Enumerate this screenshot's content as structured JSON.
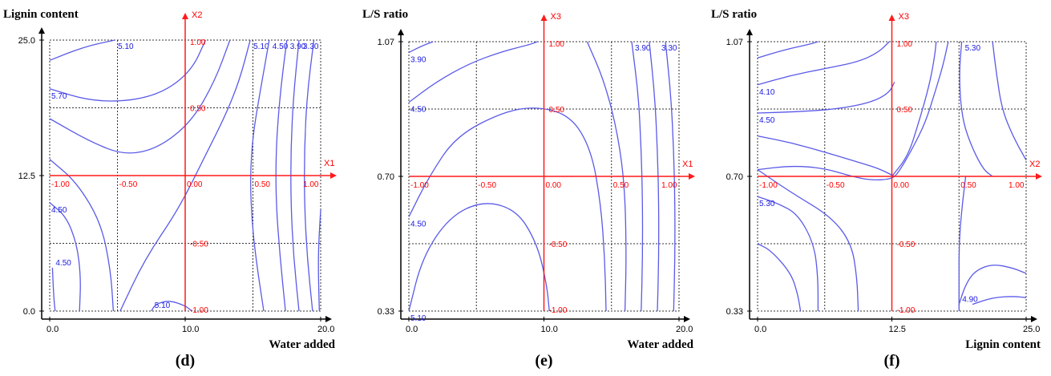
{
  "chart_data": [
    {
      "type": "contour",
      "panel_label": "(d)",
      "ylabel": "Lignin content",
      "xlabel": "Water added",
      "x_ticks": [
        "0.0",
        "10.0",
        "20.0"
      ],
      "y_ticks": [
        "0.0",
        "12.5",
        "25.0"
      ],
      "xlim": [
        0,
        20
      ],
      "ylim": [
        0,
        25
      ],
      "coded_axes": {
        "x_name": "X1",
        "y_name": "X2",
        "x_ticks": [
          "-1.00",
          "-0.50",
          "0.00",
          "0.50",
          "1.00"
        ],
        "y_ticks": [
          "1.00",
          "0.50",
          "-0.50",
          "-1.00"
        ]
      },
      "contours": [
        {
          "level": "4.50",
          "points": [
            [
              -0.98,
              -0.68
            ],
            [
              -0.97,
              -0.9
            ],
            [
              -0.96,
              -1.0
            ]
          ]
        },
        {
          "level": "4.50",
          "points": [
            [
              -1.0,
              -0.2
            ],
            [
              -0.88,
              -0.3
            ],
            [
              -0.8,
              -0.5
            ],
            [
              -0.77,
              -0.75
            ],
            [
              -0.78,
              -1.0
            ]
          ]
        },
        {
          "level": "",
          "points": [
            [
              -1.0,
              0.12
            ],
            [
              -0.8,
              -0.05
            ],
            [
              -0.62,
              -0.35
            ],
            [
              -0.55,
              -0.7
            ],
            [
              -0.53,
              -1.0
            ]
          ]
        },
        {
          "level": "5.10",
          "points": [
            [
              -0.52,
              1.0
            ],
            [
              -0.75,
              0.95
            ],
            [
              -1.0,
              0.85
            ]
          ]
        },
        {
          "level": "5.70",
          "points": [
            [
              -1.0,
              0.64
            ],
            [
              -0.7,
              0.55
            ],
            [
              -0.4,
              0.55
            ],
            [
              -0.15,
              0.62
            ],
            [
              0.05,
              0.78
            ],
            [
              0.15,
              1.0
            ]
          ]
        },
        {
          "level": "",
          "points": [
            [
              -1.0,
              0.42
            ],
            [
              -0.7,
              0.25
            ],
            [
              -0.45,
              0.15
            ],
            [
              -0.2,
              0.2
            ],
            [
              0.05,
              0.4
            ],
            [
              0.22,
              0.7
            ],
            [
              0.33,
              1.0
            ]
          ]
        },
        {
          "level": "5.10",
          "points": [
            [
              -0.25,
              -1.0
            ],
            [
              -0.22,
              -0.95
            ],
            [
              -0.12,
              -0.92
            ],
            [
              0.0,
              -0.96
            ],
            [
              0.05,
              -1.0
            ]
          ]
        },
        {
          "level": "5.10",
          "points": [
            [
              0.48,
              1.0
            ],
            [
              0.4,
              0.7
            ],
            [
              0.3,
              0.45
            ],
            [
              0.15,
              0.15
            ],
            [
              -0.05,
              -0.25
            ],
            [
              -0.3,
              -0.62
            ],
            [
              -0.48,
              -1.0
            ]
          ]
        },
        {
          "level": "4.50",
          "points": [
            [
              0.62,
              1.0
            ],
            [
              0.55,
              0.6
            ],
            [
              0.5,
              0.3
            ],
            [
              0.48,
              0.0
            ],
            [
              0.49,
              -0.3
            ],
            [
              0.52,
              -0.6
            ],
            [
              0.58,
              -1.0
            ]
          ]
        },
        {
          "level": "3.90",
          "points": [
            [
              0.75,
              1.0
            ],
            [
              0.7,
              0.6
            ],
            [
              0.67,
              0.2
            ],
            [
              0.67,
              -0.2
            ],
            [
              0.7,
              -0.6
            ],
            [
              0.74,
              -1.0
            ]
          ]
        },
        {
          "level": "",
          "points": [
            [
              0.84,
              1.0
            ],
            [
              0.8,
              0.6
            ],
            [
              0.78,
              0.2
            ],
            [
              0.78,
              -0.2
            ],
            [
              0.8,
              -0.6
            ],
            [
              0.84,
              -1.0
            ]
          ]
        },
        {
          "level": "3.30",
          "points": [
            [
              0.95,
              1.0
            ],
            [
              0.9,
              0.6
            ],
            [
              0.88,
              0.2
            ],
            [
              0.88,
              -0.2
            ],
            [
              0.9,
              -0.6
            ],
            [
              0.94,
              -1.0
            ]
          ]
        },
        {
          "level": "",
          "points": [
            [
              1.0,
              -0.25
            ],
            [
              0.98,
              -0.6
            ],
            [
              0.99,
              -1.0
            ]
          ]
        }
      ]
    },
    {
      "type": "contour",
      "panel_label": "(e)",
      "ylabel": "L/S ratio",
      "xlabel": "Water added",
      "x_ticks": [
        "0.0",
        "10.0",
        "20.0"
      ],
      "y_ticks": [
        "0.33",
        "0.70",
        "1.07"
      ],
      "xlim": [
        0,
        20
      ],
      "ylim": [
        0.33,
        1.07
      ],
      "coded_axes": {
        "x_name": "X1",
        "y_name": "X3",
        "x_ticks": [
          "-1.00",
          "-0.50",
          "0.00",
          "0.50",
          "1.00"
        ],
        "y_ticks": [
          "1.00",
          "0.50",
          "-0.50",
          "-1.00"
        ]
      },
      "contours": [
        {
          "level": "3.90",
          "points": [
            [
              -1.0,
              0.92
            ],
            [
              -0.9,
              0.97
            ],
            [
              -0.82,
              1.0
            ]
          ]
        },
        {
          "level": "4.50",
          "points": [
            [
              -1.0,
              0.55
            ],
            [
              -0.8,
              0.7
            ],
            [
              -0.55,
              0.84
            ],
            [
              -0.3,
              0.93
            ],
            [
              -0.1,
              0.98
            ],
            [
              -0.05,
              1.0
            ]
          ]
        },
        {
          "level": "4.50",
          "points": [
            [
              -1.0,
              -0.3
            ],
            [
              -0.85,
              0.0
            ],
            [
              -0.65,
              0.3
            ],
            [
              -0.3,
              0.48
            ],
            [
              -0.05,
              0.52
            ],
            [
              0.2,
              0.45
            ],
            [
              0.35,
              0.2
            ],
            [
              0.42,
              -0.2
            ],
            [
              0.45,
              -0.6
            ],
            [
              0.46,
              -1.0
            ]
          ]
        },
        {
          "level": "5.10",
          "points": [
            [
              -1.0,
              -1.0
            ],
            [
              -0.9,
              -0.6
            ],
            [
              -0.7,
              -0.3
            ],
            [
              -0.45,
              -0.18
            ],
            [
              -0.2,
              -0.25
            ],
            [
              -0.05,
              -0.5
            ],
            [
              0.02,
              -0.8
            ],
            [
              0.04,
              -1.0
            ]
          ]
        },
        {
          "level": "",
          "points": [
            [
              0.32,
              1.0
            ],
            [
              0.45,
              0.7
            ],
            [
              0.55,
              0.3
            ],
            [
              0.6,
              -0.1
            ],
            [
              0.61,
              -0.6
            ],
            [
              0.6,
              -1.0
            ]
          ]
        },
        {
          "level": "3.90",
          "points": [
            [
              0.65,
              1.0
            ],
            [
              0.7,
              0.6
            ],
            [
              0.72,
              0.2
            ],
            [
              0.73,
              -0.2
            ],
            [
              0.73,
              -0.6
            ],
            [
              0.72,
              -1.0
            ]
          ]
        },
        {
          "level": "",
          "points": [
            [
              0.78,
              1.0
            ],
            [
              0.82,
              0.6
            ],
            [
              0.84,
              0.2
            ],
            [
              0.85,
              -0.2
            ],
            [
              0.85,
              -0.6
            ],
            [
              0.84,
              -1.0
            ]
          ]
        },
        {
          "level": "3.30",
          "points": [
            [
              0.9,
              1.0
            ],
            [
              0.94,
              0.6
            ],
            [
              0.96,
              0.2
            ],
            [
              0.97,
              -0.2
            ],
            [
              0.97,
              -0.6
            ],
            [
              0.96,
              -1.0
            ]
          ]
        }
      ]
    },
    {
      "type": "contour",
      "panel_label": "(f)",
      "ylabel": "L/S ratio",
      "xlabel": "Lignin content",
      "x_ticks": [
        "0.0",
        "12.5",
        "25.0"
      ],
      "y_ticks": [
        "0.33",
        "0.70",
        "1.07"
      ],
      "xlim": [
        0,
        25
      ],
      "ylim": [
        0.33,
        1.07
      ],
      "coded_axes": {
        "x_name": "X2",
        "y_name": "X3",
        "x_ticks": [
          "-1.00",
          "-0.50",
          "0.00",
          "0.50",
          "1.00"
        ],
        "y_ticks": [
          "1.00",
          "0.50",
          "-0.50",
          "-1.00"
        ]
      },
      "contours": [
        {
          "level": "",
          "points": [
            [
              -1.0,
              0.88
            ],
            [
              -0.8,
              0.94
            ],
            [
              -0.62,
              0.98
            ],
            [
              -0.55,
              1.0
            ]
          ]
        },
        {
          "level": "4.10",
          "points": [
            [
              -1.0,
              0.68
            ],
            [
              -0.75,
              0.75
            ],
            [
              -0.5,
              0.8
            ],
            [
              -0.25,
              0.85
            ],
            [
              -0.1,
              0.92
            ],
            [
              -0.02,
              1.0
            ]
          ]
        },
        {
          "level": "4.50",
          "points": [
            [
              -1.0,
              0.47
            ],
            [
              -0.7,
              0.48
            ],
            [
              -0.4,
              0.5
            ],
            [
              -0.15,
              0.55
            ],
            [
              -0.02,
              0.62
            ],
            [
              0.02,
              0.7
            ]
          ]
        },
        {
          "level": "",
          "points": [
            [
              -1.0,
              0.3
            ],
            [
              -0.75,
              0.25
            ],
            [
              -0.5,
              0.18
            ],
            [
              -0.3,
              0.12
            ],
            [
              -0.1,
              0.06
            ],
            [
              0.02,
              0.0
            ]
          ]
        },
        {
          "level": "",
          "points": [
            [
              -1.0,
              0.05
            ],
            [
              -0.75,
              0.08
            ],
            [
              -0.5,
              0.06
            ],
            [
              -0.3,
              0.0
            ],
            [
              -0.15,
              -0.03
            ],
            [
              0.0,
              -0.02
            ],
            [
              0.05,
              0.03
            ],
            [
              0.15,
              0.2
            ],
            [
              0.25,
              0.4
            ],
            [
              0.32,
              0.62
            ],
            [
              0.38,
              0.82
            ],
            [
              0.42,
              1.0
            ]
          ]
        },
        {
          "level": "",
          "points": [
            [
              0.0,
              0.0
            ],
            [
              0.12,
              0.15
            ],
            [
              0.2,
              0.4
            ],
            [
              0.28,
              0.68
            ],
            [
              0.32,
              0.9
            ],
            [
              0.33,
              1.0
            ]
          ]
        },
        {
          "level": "5.30",
          "points": [
            [
              0.52,
              1.0
            ],
            [
              0.5,
              0.75
            ],
            [
              0.52,
              0.45
            ],
            [
              0.58,
              0.25
            ],
            [
              0.68,
              0.05
            ],
            [
              0.75,
              0.0
            ]
          ]
        },
        {
          "level": "",
          "points": [
            [
              0.75,
              1.0
            ],
            [
              0.78,
              0.75
            ],
            [
              0.82,
              0.5
            ],
            [
              0.9,
              0.3
            ],
            [
              1.0,
              0.12
            ]
          ]
        },
        {
          "level": "5.30",
          "points": [
            [
              -1.0,
              -0.15
            ],
            [
              -0.85,
              -0.2
            ],
            [
              -0.7,
              -0.28
            ],
            [
              -0.58,
              -0.5
            ],
            [
              -0.55,
              -0.75
            ],
            [
              -0.55,
              -1.0
            ]
          ]
        },
        {
          "level": "",
          "points": [
            [
              -1.0,
              -0.5
            ],
            [
              -0.9,
              -0.55
            ],
            [
              -0.75,
              -0.72
            ],
            [
              -0.7,
              -0.88
            ],
            [
              -0.68,
              -1.0
            ]
          ]
        },
        {
          "level": "",
          "points": [
            [
              -1.0,
              0.05
            ],
            [
              -0.75,
              -0.12
            ],
            [
              -0.45,
              -0.3
            ],
            [
              -0.3,
              -0.5
            ],
            [
              -0.26,
              -0.75
            ],
            [
              -0.25,
              -1.0
            ]
          ]
        },
        {
          "level": "",
          "points": [
            [
              0.55,
              0.0
            ],
            [
              0.52,
              -0.25
            ],
            [
              0.5,
              -0.5
            ],
            [
              0.5,
              -0.75
            ],
            [
              0.5,
              -1.0
            ]
          ]
        },
        {
          "level": "4.90",
          "points": [
            [
              0.5,
              -0.95
            ],
            [
              0.55,
              -0.8
            ],
            [
              0.62,
              -0.7
            ],
            [
              0.75,
              -0.65
            ],
            [
              0.9,
              -0.68
            ],
            [
              1.0,
              -0.72
            ]
          ]
        },
        {
          "level": "",
          "points": [
            [
              0.6,
              -0.95
            ],
            [
              0.75,
              -0.9
            ],
            [
              0.9,
              -0.89
            ],
            [
              1.0,
              -0.9
            ]
          ]
        }
      ]
    }
  ]
}
